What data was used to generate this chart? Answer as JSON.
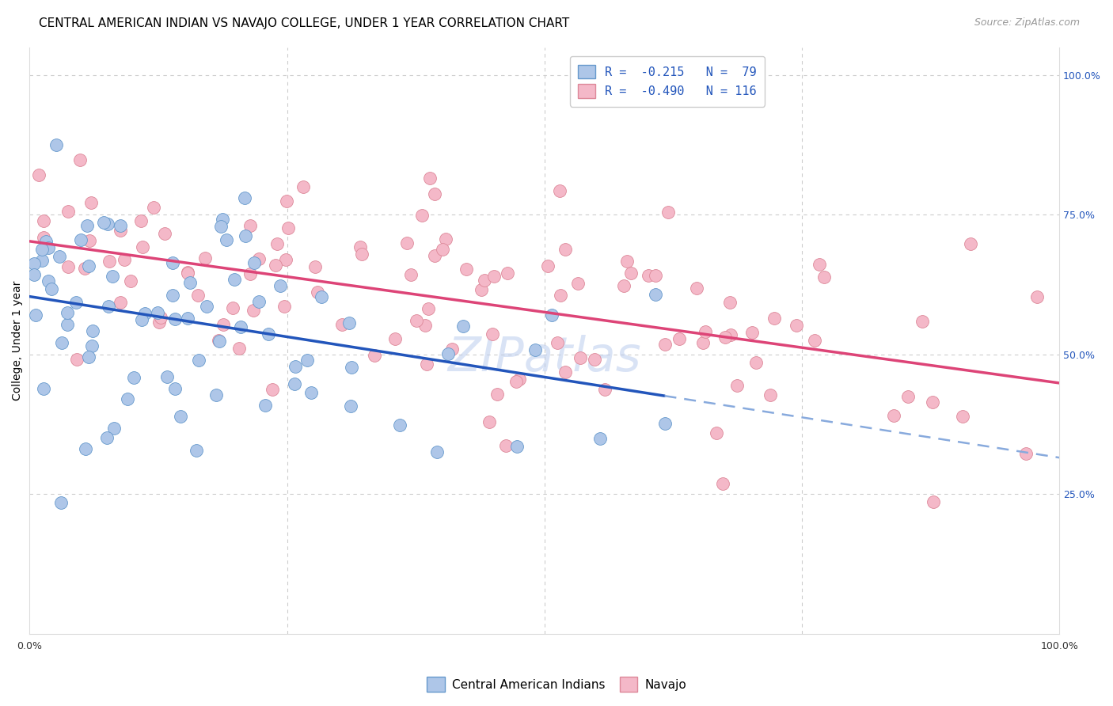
{
  "title": "CENTRAL AMERICAN INDIAN VS NAVAJO COLLEGE, UNDER 1 YEAR CORRELATION CHART",
  "source": "Source: ZipAtlas.com",
  "ylabel": "College, Under 1 year",
  "xlim": [
    0.0,
    1.0
  ],
  "ylim": [
    0.0,
    1.05
  ],
  "ytick_vals": [
    0.25,
    0.5,
    0.75,
    1.0
  ],
  "ytick_labels": [
    "25.0%",
    "50.0%",
    "75.0%",
    "100.0%"
  ],
  "xtick_vals": [
    0.0,
    0.25,
    0.5,
    0.75,
    1.0
  ],
  "xtick_labels_left": "0.0%",
  "xtick_labels_right": "100.0%",
  "legend_R1": "R =  -0.215",
  "legend_N1": "N =  79",
  "legend_R2": "R =  -0.490",
  "legend_N2": "N = 116",
  "series": [
    {
      "name": "Central American Indians",
      "color": "#aec6e8",
      "edge_color": "#6699cc",
      "line_color": "#2255bb",
      "R": -0.215,
      "N": 79
    },
    {
      "name": "Navajo",
      "color": "#f4b8c8",
      "edge_color": "#dd8899",
      "line_color": "#dd4477",
      "R": -0.49,
      "N": 116
    }
  ],
  "dashed_line_color": "#88aadd",
  "watermark": "ZIPatlas",
  "background_color": "#ffffff",
  "grid_color": "#cccccc",
  "title_fontsize": 11,
  "axis_label_fontsize": 10,
  "tick_fontsize": 9,
  "legend_fontsize": 11,
  "source_fontsize": 9
}
